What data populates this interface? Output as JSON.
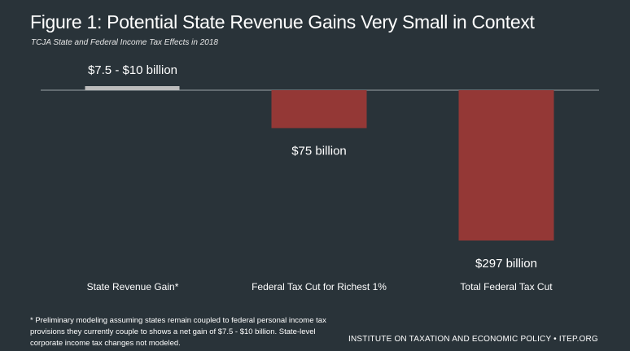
{
  "chart_data": {
    "type": "bar",
    "title": "Figure 1: Potential State Revenue Gains Very Small in Context",
    "subtitle": "TCJA State and Federal Income Tax Effects in 2018",
    "categories": [
      "State Revenue Gain*",
      "Federal Tax Cut for Richest 1%",
      "Total Federal Tax Cut"
    ],
    "values": [
      10,
      -75,
      -297
    ],
    "data_labels": [
      "$7.5 - $10 billion",
      "$75 billion",
      "$297 billion"
    ],
    "unit": "billion",
    "ylim": [
      -310,
      10
    ],
    "grid": false,
    "colors": {
      "state": "#bcbcbc",
      "federal": "#943836",
      "baseline": "#9aa3a8"
    }
  },
  "footnote": "* Preliminary modeling assuming states remain coupled to federal personal income tax provisions they currently couple to shows a net gain of $7.5 - $10 billion. State-level corporate income tax changes not modeled.",
  "source": "INSTITUTE ON TAXATION AND ECONOMIC POLICY • ITEP.ORG"
}
